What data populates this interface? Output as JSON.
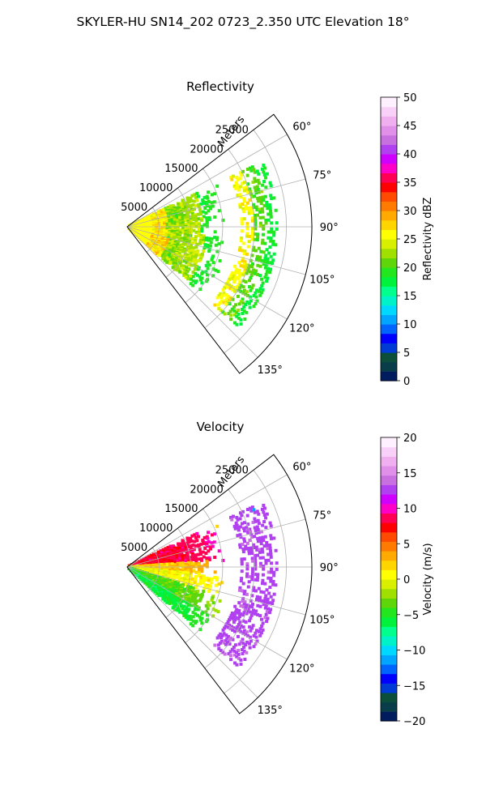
{
  "figure": {
    "suptitle": "SKYLER-HU  SN14_202  0723_2.350 UTC Elevation 18°"
  },
  "chart_data": [
    {
      "type": "heatmap",
      "title": "Reflectivity",
      "projection": "polar-sector",
      "range_axis_label": "Meters",
      "range_ticks": [
        "5000",
        "10000",
        "15000",
        "20000",
        "25000"
      ],
      "range_values": [
        5000,
        10000,
        15000,
        20000,
        25000
      ],
      "range_max": 29000,
      "azimuth_range_deg": [
        52.5,
        142.5
      ],
      "azimuth_ticks": [
        "60°",
        "75°",
        "90°",
        "105°",
        "120°",
        "135°"
      ],
      "azimuth_values": [
        60,
        75,
        90,
        105,
        120,
        135
      ],
      "grid": true,
      "colorbar": {
        "label": "Reflectivity dBZ",
        "range": [
          0,
          50
        ],
        "ticks": [
          "0",
          "5",
          "10",
          "15",
          "20",
          "25",
          "30",
          "35",
          "40",
          "45",
          "50"
        ],
        "tick_values": [
          0,
          5,
          10,
          15,
          20,
          25,
          30,
          35,
          40,
          45,
          50
        ],
        "colors": [
          "#001b5e",
          "#0a3d4a",
          "#0b4f3a",
          "#003bd6",
          "#0000ff",
          "#0064ff",
          "#00a6ff",
          "#00d9ff",
          "#00f2c8",
          "#00ff8c",
          "#00f23c",
          "#22e61e",
          "#5fd60a",
          "#a0e000",
          "#d8f000",
          "#ffff00",
          "#ffd500",
          "#ffaa00",
          "#ff7a00",
          "#ff4a00",
          "#ff0000",
          "#ff0055",
          "#ff00c8",
          "#d000ff",
          "#b040f0",
          "#c870e0",
          "#e090e8",
          "#f0b0f0",
          "#f8d0f8",
          "#fff0ff"
        ],
        "legend_position": "right"
      },
      "echo_field": {
        "lobes": [
          {
            "azimuth_deg": 68,
            "range_m": [
              18000,
              22500
            ],
            "value": 19
          },
          {
            "azimuth_deg": 80,
            "range_m": [
              0,
              14000
            ],
            "value": 21
          },
          {
            "azimuth_deg": 90,
            "range_m": [
              0,
              13500
            ],
            "value": 22
          },
          {
            "azimuth_deg": 100,
            "range_m": [
              0,
              14500
            ],
            "value": 21
          },
          {
            "azimuth_deg": 115,
            "range_m": [
              0,
              15000
            ],
            "value": 22
          },
          {
            "azimuth_deg": 125,
            "range_m": [
              0,
              15000
            ],
            "value": 21
          }
        ],
        "near_range_value": 26,
        "core_value": 32,
        "edge_value": 15
      }
    },
    {
      "type": "heatmap",
      "title": "Velocity",
      "projection": "polar-sector",
      "range_axis_label": "Meters",
      "range_ticks": [
        "5000",
        "10000",
        "15000",
        "20000",
        "25000"
      ],
      "range_values": [
        5000,
        10000,
        15000,
        20000,
        25000
      ],
      "range_max": 29000,
      "azimuth_range_deg": [
        52.5,
        142.5
      ],
      "azimuth_ticks": [
        "60°",
        "75°",
        "90°",
        "105°",
        "120°",
        "135°"
      ],
      "azimuth_values": [
        60,
        75,
        90,
        105,
        120,
        135
      ],
      "grid": true,
      "colorbar": {
        "label": "Velocity (m/s)",
        "range": [
          -20,
          20
        ],
        "ticks": [
          "−20",
          "−15",
          "−10",
          "−5",
          "0",
          "5",
          "10",
          "15",
          "20"
        ],
        "tick_values": [
          -20,
          -15,
          -10,
          -5,
          0,
          5,
          10,
          15,
          20
        ],
        "colors": [
          "#001b5e",
          "#0a3d4a",
          "#0b4f3a",
          "#003bd6",
          "#0000ff",
          "#0064ff",
          "#00a6ff",
          "#00d9ff",
          "#00f2c8",
          "#00ff8c",
          "#00f23c",
          "#22e61e",
          "#5fd60a",
          "#a0e000",
          "#d8f000",
          "#ffff00",
          "#ffd500",
          "#ffaa00",
          "#ff7a00",
          "#ff4a00",
          "#ff0000",
          "#ff0055",
          "#ff00c8",
          "#d000ff",
          "#b040f0",
          "#c870e0",
          "#e090e8",
          "#f0b0f0",
          "#f8d0f8",
          "#fff0ff"
        ],
        "legend_position": "right"
      },
      "echo_field": {
        "lobes": [
          {
            "azimuth_deg": 68,
            "range_m": [
              18000,
              22500
            ],
            "value": 12
          },
          {
            "azimuth_deg": 80,
            "range_m": [
              0,
              14000
            ],
            "value": 8
          },
          {
            "azimuth_deg": 90,
            "range_m": [
              0,
              13500
            ],
            "value": 2
          },
          {
            "azimuth_deg": 100,
            "range_m": [
              0,
              14500
            ],
            "value": 0
          },
          {
            "azimuth_deg": 115,
            "range_m": [
              0,
              15000
            ],
            "value": -4
          },
          {
            "azimuth_deg": 125,
            "range_m": [
              0,
              15000
            ],
            "value": -6
          }
        ],
        "far_cluster": {
          "azimuth_deg": 62,
          "range_m": [
            21000,
            24500
          ],
          "value": -12
        }
      }
    }
  ]
}
